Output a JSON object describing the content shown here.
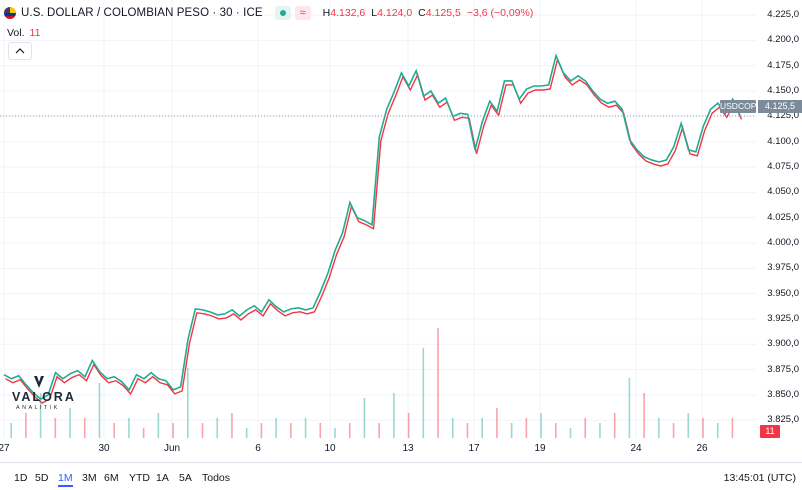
{
  "legend": {
    "symbol": "U.S. DOLLAR / COLOMBIAN PESO · 30 · ICE",
    "high_key": "H",
    "high": "4.132,6",
    "low_key": "L",
    "low": "4.124,0",
    "close_key": "C",
    "close": "4.125,5",
    "change": "−3,6 (−0,09%)",
    "flag_icon": "us-colombia-flag-icon",
    "visibility_icon": "dot-icon",
    "compare_icon": "wave-icon"
  },
  "volume": {
    "label": "Vol.",
    "value": "11"
  },
  "collapse_icon": "chevron-up-icon",
  "logo": {
    "word": "VALORA",
    "sub": "ANALITIK"
  },
  "price_tags": {
    "symbol": "USDCOP",
    "last": "4.125,5",
    "volume": "11"
  },
  "colors": {
    "up": "#22ab94",
    "down": "#f23645",
    "accent": "#2962ff",
    "grid": "#f0f3fa"
  },
  "ranges": [
    "1D",
    "5D",
    "1M",
    "3M",
    "6M",
    "YTD",
    "1A",
    "5A",
    "Todos"
  ],
  "active_range": "1M",
  "clock": "13:45:01 (UTC)",
  "chart_data": {
    "type": "line",
    "title": "U.S. DOLLAR / COLOMBIAN PESO · 30 · ICE",
    "ylabel": "",
    "xlabel": "",
    "ylim": [
      3807.5,
      4232
    ],
    "y_ticks": [
      "4.225,0",
      "4.200,0",
      "4.175,0",
      "4.150,0",
      "4.125,0",
      "4.100,0",
      "4.075,0",
      "4.050,0",
      "4.025,0",
      "4.000,0",
      "3.975,0",
      "3.950,0",
      "3.925,0",
      "3.900,0",
      "3.875,0",
      "3.850,0",
      "3.825,0"
    ],
    "x_ticks": [
      "27",
      "30",
      "Jun",
      "6",
      "10",
      "13",
      "17",
      "19",
      "24",
      "26"
    ],
    "last_price": 4125.5,
    "series": [
      {
        "name": "Close",
        "color": "#22ab94",
        "x": [
          0,
          2,
          4,
          6,
          8,
          10,
          12,
          14,
          16,
          18,
          20,
          22,
          24,
          26,
          28,
          30,
          32,
          34,
          36,
          38,
          40,
          42,
          44,
          46,
          48,
          50,
          52,
          54,
          56,
          58,
          60,
          62,
          64,
          66,
          68,
          70,
          72,
          74,
          76,
          78,
          80,
          82,
          84,
          86,
          88,
          90,
          92,
          94,
          96,
          98,
          100,
          102,
          104,
          106,
          108,
          110,
          112,
          114,
          116,
          118,
          120,
          122,
          124,
          126,
          128,
          130,
          132,
          134,
          136,
          138,
          140,
          142,
          144,
          146,
          148,
          150,
          152,
          154,
          156,
          158,
          160,
          162,
          164,
          166,
          168,
          170,
          172,
          174,
          176,
          178,
          180,
          182,
          184,
          186,
          188,
          190,
          192,
          194,
          196,
          198,
          200
        ],
        "y": [
          3870,
          3866,
          3869,
          3860,
          3852,
          3846,
          3850,
          3872,
          3866,
          3871,
          3874,
          3868,
          3884,
          3873,
          3866,
          3868,
          3863,
          3855,
          3870,
          3866,
          3872,
          3866,
          3864,
          3855,
          3858,
          3905,
          3935,
          3934,
          3932,
          3929,
          3930,
          3934,
          3928,
          3934,
          3938,
          3932,
          3944,
          3937,
          3932,
          3935,
          3936,
          3934,
          3936,
          3952,
          3970,
          3993,
          4010,
          4040,
          4025,
          4022,
          4018,
          4105,
          4132,
          4149,
          4168,
          4155,
          4170,
          4145,
          4150,
          4138,
          4143,
          4125,
          4128,
          4127,
          4092,
          4120,
          4140,
          4130,
          4160,
          4160,
          4142,
          4152,
          4155,
          4155,
          4156,
          4185,
          4168,
          4160,
          4165,
          4160,
          4150,
          4142,
          4138,
          4140,
          4132,
          4102,
          4092,
          4085,
          4082,
          4080,
          4082,
          4095,
          4118,
          4092,
          4090,
          4115,
          4132,
          4138,
          4128,
          4142,
          4126
        ]
      }
    ],
    "volume": {
      "x": [
        2,
        6,
        10,
        14,
        18,
        22,
        26,
        30,
        34,
        38,
        42,
        46,
        50,
        54,
        58,
        62,
        66,
        70,
        74,
        78,
        82,
        86,
        90,
        94,
        98,
        102,
        106,
        110,
        114,
        118,
        122,
        126,
        130,
        134,
        138,
        142,
        146,
        150,
        154,
        158,
        162,
        166,
        170,
        174,
        178,
        182,
        186,
        190,
        194,
        198
      ],
      "values": [
        3,
        5,
        9,
        4,
        6,
        4,
        11,
        3,
        4,
        2,
        5,
        3,
        14,
        3,
        4,
        5,
        2,
        3,
        4,
        3,
        4,
        3,
        2,
        3,
        8,
        3,
        9,
        5,
        18,
        22,
        4,
        3,
        4,
        6,
        3,
        4,
        5,
        3,
        2,
        4,
        3,
        5,
        12,
        9,
        4,
        3,
        5,
        4,
        3,
        4
      ]
    }
  }
}
